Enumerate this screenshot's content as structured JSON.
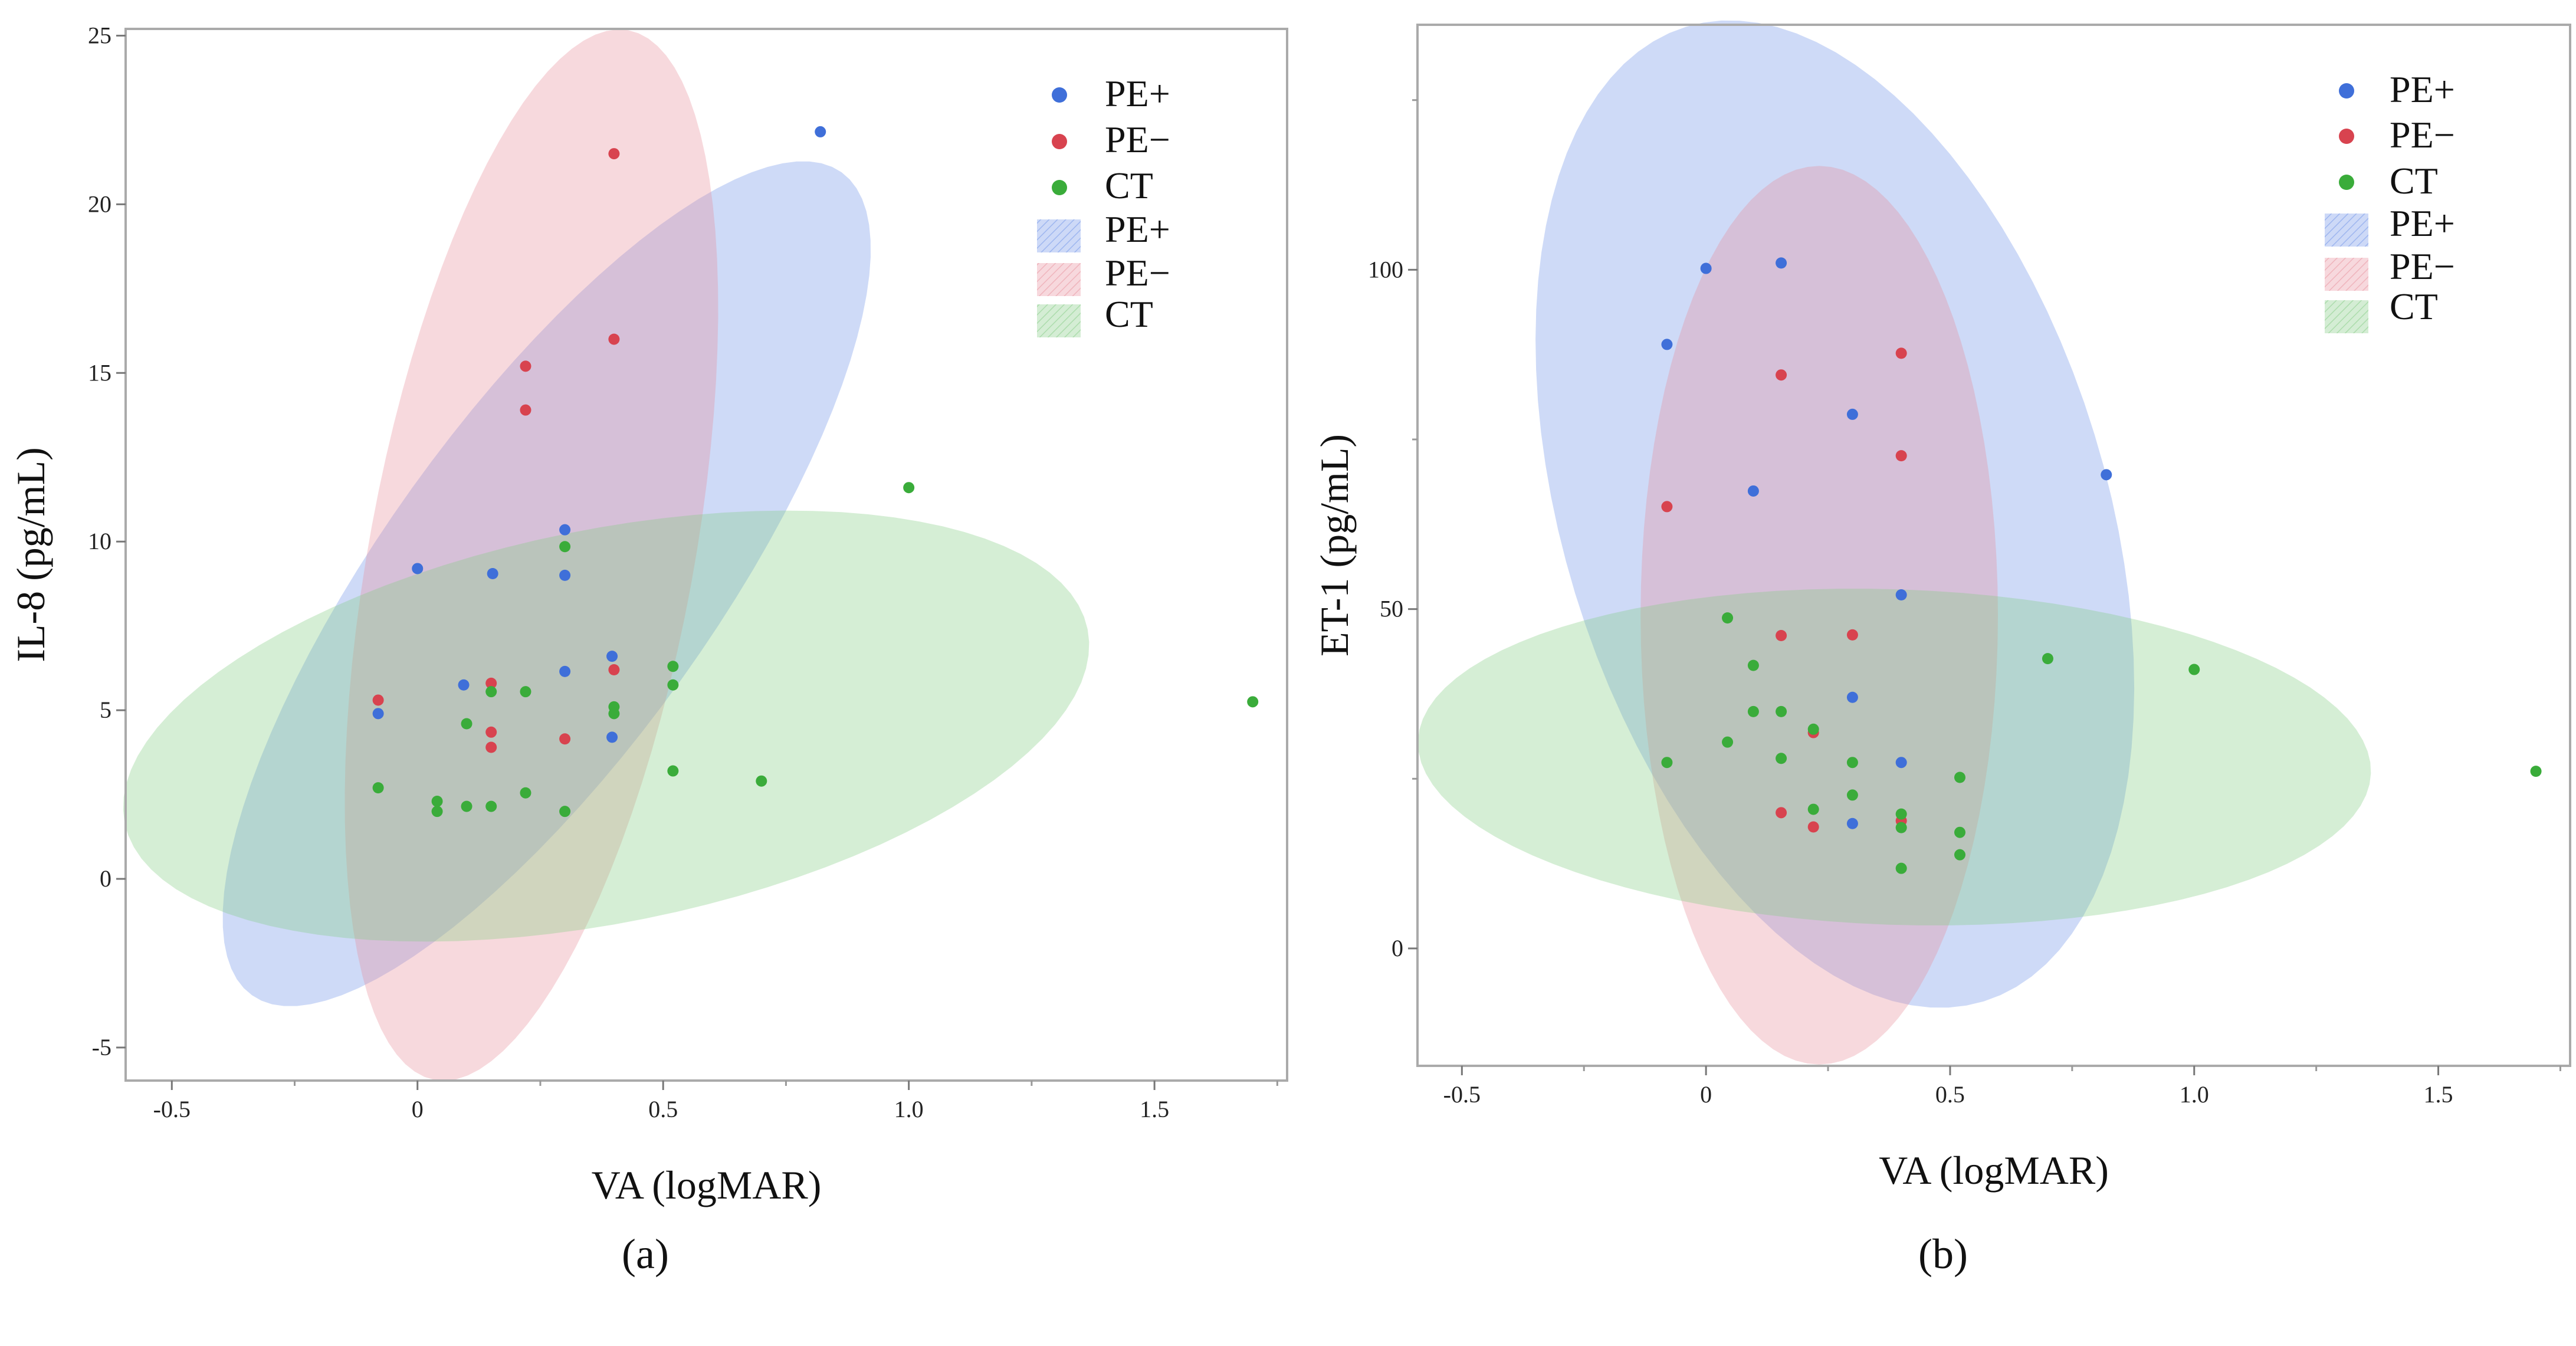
{
  "chart_data": [
    {
      "type": "scatter",
      "panel_label": "(a)",
      "panel_letter": "a",
      "xlabel": "VA (logMAR)",
      "ylabel": "IL-8 (pg/mL)",
      "xlim": [
        -0.594,
        1.77
      ],
      "ylim": [
        -5.98,
        25.2
      ],
      "xticks": [
        {
          "v": -0.5,
          "label": "-0.5"
        },
        {
          "v": 0,
          "label": "0"
        },
        {
          "v": 0.5,
          "label": "0.5"
        },
        {
          "v": 1.0,
          "label": "1.0"
        },
        {
          "v": 1.5,
          "label": "1.5"
        }
      ],
      "xminor": [
        -0.25,
        0.25,
        0.75,
        1.25,
        1.75
      ],
      "yticks": [
        {
          "v": 25,
          "label": "25"
        },
        {
          "v": 20,
          "label": "20"
        },
        {
          "v": 15,
          "label": "15"
        },
        {
          "v": 10,
          "label": "10"
        },
        {
          "v": 5,
          "label": "5"
        },
        {
          "v": 0,
          "label": "0"
        },
        {
          "v": -5,
          "label": "-5"
        }
      ],
      "grid": false,
      "legend_position": "top-right",
      "legend": {
        "points": [
          "PE+",
          "PE−",
          "CT"
        ],
        "ellipses": [
          "PE+",
          "PE−",
          "CT"
        ]
      },
      "ellipses": [
        {
          "name": "PE+",
          "color": "#6f93e8",
          "center": [
            0.263,
            8.75
          ],
          "u": [
            0.6,
            12.2
          ],
          "v": [
            0.274,
            -2.84
          ]
        },
        {
          "name": "PE−",
          "color": "#e8909c",
          "center": [
            0.232,
            9.6
          ],
          "u": [
            0.197,
            15.56
          ],
          "v": [
            0.325,
            -0.86
          ]
        },
        {
          "name": "CT",
          "color": "#84cc84",
          "center": [
            0.384,
            4.53
          ],
          "u": [
            0.98,
            2.87
          ],
          "v": [
            0.079,
            -5.71
          ]
        }
      ],
      "series": [
        {
          "name": "PE+",
          "color": "#3f6fd9",
          "points": [
            [
              0.82,
              22.15
            ],
            [
              0,
              9.2
            ],
            [
              0.153,
              9.05
            ],
            [
              0.3,
              10.35
            ],
            [
              0.3,
              9.0
            ],
            [
              0.094,
              5.75
            ],
            [
              -0.08,
              4.9
            ],
            [
              0.3,
              6.15
            ],
            [
              0.396,
              6.6
            ],
            [
              0.396,
              4.2
            ]
          ]
        },
        {
          "name": "PE−",
          "color": "#d8434f",
          "points": [
            [
              0.4,
              21.5
            ],
            [
              0.4,
              16.0
            ],
            [
              0.22,
              15.2
            ],
            [
              0.22,
              13.9
            ],
            [
              -0.08,
              5.3
            ],
            [
              0.15,
              5.8
            ],
            [
              0.4,
              6.2
            ],
            [
              0.15,
              4.35
            ],
            [
              0.15,
              3.9
            ],
            [
              0.3,
              4.15
            ]
          ]
        },
        {
          "name": "CT",
          "color": "#3aac3a",
          "points": [
            [
              1.0,
              11.6
            ],
            [
              0.3,
              9.85
            ],
            [
              0.15,
              5.55
            ],
            [
              0.22,
              5.55
            ],
            [
              0.4,
              5.1
            ],
            [
              0.4,
              4.9
            ],
            [
              0.52,
              6.3
            ],
            [
              0.52,
              5.75
            ],
            [
              1.7,
              5.25
            ],
            [
              0.1,
              4.6
            ],
            [
              -0.08,
              2.7
            ],
            [
              0.04,
              2.3
            ],
            [
              0.04,
              2.0
            ],
            [
              0.1,
              2.15
            ],
            [
              0.15,
              2.15
            ],
            [
              0.22,
              2.55
            ],
            [
              0.3,
              2.0
            ],
            [
              0.52,
              3.2
            ],
            [
              0.7,
              2.9
            ]
          ]
        }
      ]
    },
    {
      "type": "scatter",
      "panel_label": "(b)",
      "panel_letter": "b",
      "xlabel": "VA (logMAR)",
      "ylabel": "ET-1 (pg/mL)",
      "xlim": [
        -0.591,
        1.77
      ],
      "ylim": [
        -17.3,
        136.1
      ],
      "xticks": [
        {
          "v": -0.5,
          "label": "-0.5"
        },
        {
          "v": 0,
          "label": "0"
        },
        {
          "v": 0.5,
          "label": "0.5"
        },
        {
          "v": 1.0,
          "label": "1.0"
        },
        {
          "v": 1.5,
          "label": "1.5"
        }
      ],
      "xminor": [
        -0.25,
        0.25,
        0.75,
        1.25,
        1.75
      ],
      "yticks": [
        {
          "v": 100,
          "label": "100"
        },
        {
          "v": 50,
          "label": "50"
        },
        {
          "v": 0,
          "label": "0"
        }
      ],
      "yminor": [
        125,
        75,
        25
      ],
      "grid": false,
      "legend_position": "top-right",
      "legend": {
        "points": [
          "PE+",
          "PE−",
          "CT"
        ],
        "ellipses": [
          "PE+",
          "PE−",
          "CT"
        ]
      },
      "ellipses": [
        {
          "name": "PE+",
          "color": "#6f93e8",
          "center": [
            0.264,
            64.0
          ],
          "u": [
            -0.305,
            71.8
          ],
          "v": [
            0.532,
            11.7
          ]
        },
        {
          "name": "PE−",
          "color": "#e8909c",
          "center": [
            0.232,
            49.1
          ],
          "u": [
            0,
            66.2
          ],
          "v": [
            0.366,
            0
          ]
        },
        {
          "name": "CT",
          "color": "#84cc84",
          "center": [
            0.386,
            28.2
          ],
          "u": [
            0.976,
            -2.4
          ],
          "v": [
            0.012,
            24.7
          ]
        }
      ],
      "series": [
        {
          "name": "PE+",
          "color": "#3f6fd9",
          "points": [
            [
              -0.08,
              89
            ],
            [
              0,
              100.2
            ],
            [
              0.154,
              101
            ],
            [
              0.3,
              78.7
            ],
            [
              0.097,
              67.4
            ],
            [
              0.82,
              69.8
            ],
            [
              0.4,
              52.1
            ],
            [
              0.3,
              37
            ],
            [
              0.4,
              27.4
            ],
            [
              0.3,
              18.4
            ]
          ]
        },
        {
          "name": "PE−",
          "color": "#d8434f",
          "points": [
            [
              0.4,
              87.7
            ],
            [
              0.154,
              84.5
            ],
            [
              0.4,
              72.6
            ],
            [
              -0.08,
              65.1
            ],
            [
              0.154,
              46.1
            ],
            [
              0.3,
              46.2
            ],
            [
              0.22,
              31.8
            ],
            [
              0.154,
              20
            ],
            [
              0.22,
              17.9
            ],
            [
              0.4,
              18.8
            ]
          ]
        },
        {
          "name": "CT",
          "color": "#3aac3a",
          "points": [
            [
              0.044,
              48.7
            ],
            [
              0.097,
              41.7
            ],
            [
              0.097,
              34.9
            ],
            [
              0.154,
              34.9
            ],
            [
              0.22,
              32.3
            ],
            [
              0.044,
              30.4
            ],
            [
              -0.08,
              27.4
            ],
            [
              0.154,
              28
            ],
            [
              0.3,
              27.4
            ],
            [
              0.7,
              42.7
            ],
            [
              1.0,
              41.1
            ],
            [
              1.7,
              26.1
            ],
            [
              0.52,
              25.2
            ],
            [
              0.3,
              22.6
            ],
            [
              0.22,
              20.5
            ],
            [
              0.4,
              19.8
            ],
            [
              0.4,
              17.8
            ],
            [
              0.52,
              17.1
            ],
            [
              0.52,
              13.8
            ],
            [
              0.4,
              11.8
            ]
          ]
        }
      ]
    }
  ]
}
